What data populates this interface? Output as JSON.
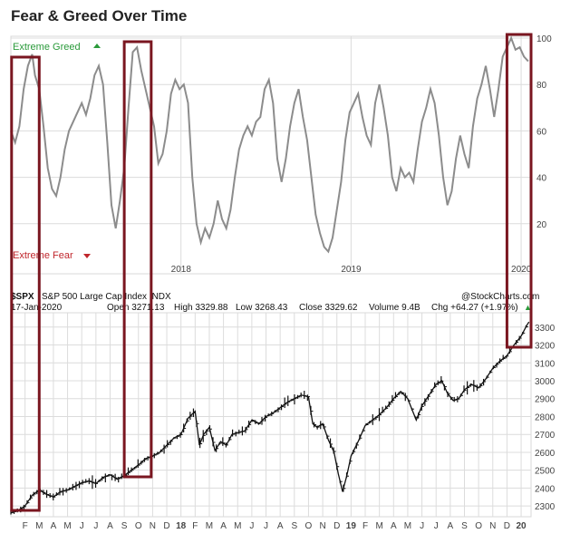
{
  "title": "Fear & Greed Over Time",
  "colors": {
    "greed": "#2a9a3a",
    "fear": "#c0262c",
    "fg_line": "#8c8c8c",
    "price": "#111111",
    "box": "#7a1620",
    "grid": "#dcdcdc"
  },
  "chart_data": [
    {
      "type": "line",
      "name": "fear-greed-index",
      "title": "Fear & Greed Over Time",
      "greed_label": "Extreme Greed",
      "fear_label": "Extreme Fear",
      "ylim": [
        0,
        100
      ],
      "y_ticks": [
        20,
        40,
        60,
        80,
        100
      ],
      "x_ticks": [
        {
          "t": 12.0,
          "label": "2018"
        },
        {
          "t": 24.0,
          "label": "2019"
        },
        {
          "t": 36.0,
          "label": "2020"
        }
      ],
      "x_unit": "months since Jan 2017",
      "xlim": [
        0.0,
        36.7
      ],
      "series": [
        {
          "name": "Fear & Greed Index",
          "points": [
            [
              0.0,
              60
            ],
            [
              0.3,
              55
            ],
            [
              0.6,
              62
            ],
            [
              0.9,
              78
            ],
            [
              1.2,
              88
            ],
            [
              1.5,
              93
            ],
            [
              1.7,
              84
            ],
            [
              2.0,
              78
            ],
            [
              2.3,
              62
            ],
            [
              2.6,
              44
            ],
            [
              2.9,
              35
            ],
            [
              3.2,
              32
            ],
            [
              3.5,
              40
            ],
            [
              3.8,
              52
            ],
            [
              4.1,
              60
            ],
            [
              4.4,
              64
            ],
            [
              4.7,
              68
            ],
            [
              5.0,
              72
            ],
            [
              5.3,
              67
            ],
            [
              5.6,
              74
            ],
            [
              5.9,
              84
            ],
            [
              6.2,
              88
            ],
            [
              6.5,
              80
            ],
            [
              6.8,
              55
            ],
            [
              7.1,
              28
            ],
            [
              7.4,
              18
            ],
            [
              7.7,
              30
            ],
            [
              8.0,
              44
            ],
            [
              8.3,
              70
            ],
            [
              8.6,
              94
            ],
            [
              8.9,
              96
            ],
            [
              9.2,
              86
            ],
            [
              9.5,
              78
            ],
            [
              9.8,
              70
            ],
            [
              10.1,
              62
            ],
            [
              10.4,
              46
            ],
            [
              10.7,
              50
            ],
            [
              11.0,
              60
            ],
            [
              11.3,
              76
            ],
            [
              11.6,
              82
            ],
            [
              11.9,
              78
            ],
            [
              12.2,
              80
            ],
            [
              12.5,
              72
            ],
            [
              12.8,
              40
            ],
            [
              13.1,
              20
            ],
            [
              13.4,
              12
            ],
            [
              13.7,
              18
            ],
            [
              14.0,
              14
            ],
            [
              14.3,
              20
            ],
            [
              14.6,
              30
            ],
            [
              14.9,
              22
            ],
            [
              15.2,
              18
            ],
            [
              15.5,
              26
            ],
            [
              15.8,
              40
            ],
            [
              16.1,
              52
            ],
            [
              16.4,
              58
            ],
            [
              16.7,
              62
            ],
            [
              17.0,
              58
            ],
            [
              17.3,
              64
            ],
            [
              17.6,
              66
            ],
            [
              17.9,
              78
            ],
            [
              18.2,
              82
            ],
            [
              18.5,
              72
            ],
            [
              18.8,
              48
            ],
            [
              19.1,
              38
            ],
            [
              19.4,
              48
            ],
            [
              19.7,
              62
            ],
            [
              20.0,
              72
            ],
            [
              20.3,
              78
            ],
            [
              20.6,
              66
            ],
            [
              20.9,
              56
            ],
            [
              21.2,
              40
            ],
            [
              21.5,
              24
            ],
            [
              21.8,
              16
            ],
            [
              22.1,
              10
            ],
            [
              22.4,
              8
            ],
            [
              22.7,
              14
            ],
            [
              23.0,
              26
            ],
            [
              23.3,
              38
            ],
            [
              23.6,
              56
            ],
            [
              23.9,
              68
            ],
            [
              24.2,
              72
            ],
            [
              24.5,
              76
            ],
            [
              24.8,
              66
            ],
            [
              25.1,
              58
            ],
            [
              25.4,
              54
            ],
            [
              25.7,
              72
            ],
            [
              26.0,
              80
            ],
            [
              26.3,
              70
            ],
            [
              26.6,
              58
            ],
            [
              26.9,
              40
            ],
            [
              27.2,
              34
            ],
            [
              27.5,
              44
            ],
            [
              27.8,
              40
            ],
            [
              28.1,
              42
            ],
            [
              28.4,
              38
            ],
            [
              28.7,
              52
            ],
            [
              29.0,
              64
            ],
            [
              29.3,
              70
            ],
            [
              29.6,
              78
            ],
            [
              29.9,
              72
            ],
            [
              30.2,
              58
            ],
            [
              30.5,
              40
            ],
            [
              30.8,
              28
            ],
            [
              31.1,
              34
            ],
            [
              31.4,
              48
            ],
            [
              31.7,
              58
            ],
            [
              32.0,
              50
            ],
            [
              32.3,
              44
            ],
            [
              32.6,
              62
            ],
            [
              32.9,
              74
            ],
            [
              33.2,
              80
            ],
            [
              33.5,
              88
            ],
            [
              33.8,
              78
            ],
            [
              34.1,
              66
            ],
            [
              34.4,
              78
            ],
            [
              34.7,
              92
            ],
            [
              35.0,
              96
            ],
            [
              35.3,
              100
            ],
            [
              35.6,
              95
            ],
            [
              35.9,
              96
            ],
            [
              36.2,
              92
            ],
            [
              36.5,
              90
            ]
          ]
        }
      ]
    },
    {
      "type": "ohlc",
      "name": "spx-price",
      "symbol": "$SPX",
      "description": "S&P 500 Large Cap Index INDX",
      "date": "17-Jan-2020",
      "source": "@StockCharts.com",
      "open": "Open 3271.13",
      "high": "High 3329.88",
      "low": "Low 3268.43",
      "close": "Close 3329.62",
      "volume": "Volume 9.4B",
      "chg": "Chg +64.27 (+1.97%)",
      "chg_arrow": "▲",
      "ylim": [
        2240,
        3380
      ],
      "y_ticks": [
        2300,
        2400,
        2500,
        2600,
        2700,
        2800,
        2900,
        3000,
        3100,
        3200,
        3300
      ],
      "x_unit": "months since Jan 2017",
      "xlim": [
        0.0,
        36.7
      ],
      "x_ticks": [
        {
          "t": 1,
          "label": "F"
        },
        {
          "t": 2,
          "label": "M"
        },
        {
          "t": 3,
          "label": "A"
        },
        {
          "t": 4,
          "label": "M"
        },
        {
          "t": 5,
          "label": "J"
        },
        {
          "t": 6,
          "label": "J"
        },
        {
          "t": 7,
          "label": "A"
        },
        {
          "t": 8,
          "label": "S"
        },
        {
          "t": 9,
          "label": "O"
        },
        {
          "t": 10,
          "label": "N"
        },
        {
          "t": 11,
          "label": "D"
        },
        {
          "t": 12,
          "label": "18",
          "bold": true
        },
        {
          "t": 13,
          "label": "F"
        },
        {
          "t": 14,
          "label": "M"
        },
        {
          "t": 15,
          "label": "A"
        },
        {
          "t": 16,
          "label": "M"
        },
        {
          "t": 17,
          "label": "J"
        },
        {
          "t": 18,
          "label": "J"
        },
        {
          "t": 19,
          "label": "A"
        },
        {
          "t": 20,
          "label": "S"
        },
        {
          "t": 21,
          "label": "O"
        },
        {
          "t": 22,
          "label": "N"
        },
        {
          "t": 23,
          "label": "D"
        },
        {
          "t": 24,
          "label": "19",
          "bold": true
        },
        {
          "t": 25,
          "label": "F"
        },
        {
          "t": 26,
          "label": "M"
        },
        {
          "t": 27,
          "label": "A"
        },
        {
          "t": 28,
          "label": "M"
        },
        {
          "t": 29,
          "label": "J"
        },
        {
          "t": 30,
          "label": "J"
        },
        {
          "t": 31,
          "label": "A"
        },
        {
          "t": 32,
          "label": "S"
        },
        {
          "t": 33,
          "label": "O"
        },
        {
          "t": 34,
          "label": "N"
        },
        {
          "t": 35,
          "label": "D"
        },
        {
          "t": 36,
          "label": "20",
          "bold": true
        }
      ],
      "series": [
        {
          "name": "S&P 500 close",
          "points": [
            [
              0.0,
              2262
            ],
            [
              0.5,
              2275
            ],
            [
              1.0,
              2300
            ],
            [
              1.5,
              2360
            ],
            [
              2.0,
              2390
            ],
            [
              2.5,
              2365
            ],
            [
              3.0,
              2350
            ],
            [
              3.5,
              2380
            ],
            [
              4.0,
              2390
            ],
            [
              4.5,
              2410
            ],
            [
              5.0,
              2430
            ],
            [
              5.5,
              2440
            ],
            [
              6.0,
              2425
            ],
            [
              6.5,
              2460
            ],
            [
              7.0,
              2475
            ],
            [
              7.5,
              2450
            ],
            [
              8.0,
              2470
            ],
            [
              8.5,
              2500
            ],
            [
              9.0,
              2530
            ],
            [
              9.5,
              2565
            ],
            [
              10.0,
              2580
            ],
            [
              10.5,
              2600
            ],
            [
              11.0,
              2640
            ],
            [
              11.5,
              2680
            ],
            [
              12.0,
              2700
            ],
            [
              12.5,
              2790
            ],
            [
              13.0,
              2830
            ],
            [
              13.3,
              2640
            ],
            [
              13.6,
              2700
            ],
            [
              14.0,
              2740
            ],
            [
              14.4,
              2610
            ],
            [
              14.8,
              2660
            ],
            [
              15.2,
              2640
            ],
            [
              15.6,
              2700
            ],
            [
              16.0,
              2710
            ],
            [
              16.5,
              2720
            ],
            [
              17.0,
              2780
            ],
            [
              17.5,
              2760
            ],
            [
              18.0,
              2800
            ],
            [
              18.5,
              2820
            ],
            [
              19.0,
              2850
            ],
            [
              19.5,
              2880
            ],
            [
              20.0,
              2900
            ],
            [
              20.5,
              2920
            ],
            [
              21.0,
              2910
            ],
            [
              21.3,
              2760
            ],
            [
              21.6,
              2740
            ],
            [
              22.0,
              2760
            ],
            [
              22.4,
              2670
            ],
            [
              22.8,
              2600
            ],
            [
              23.1,
              2480
            ],
            [
              23.4,
              2380
            ],
            [
              23.7,
              2470
            ],
            [
              24.0,
              2580
            ],
            [
              24.5,
              2660
            ],
            [
              25.0,
              2750
            ],
            [
              25.5,
              2780
            ],
            [
              26.0,
              2810
            ],
            [
              26.5,
              2850
            ],
            [
              27.0,
              2900
            ],
            [
              27.5,
              2940
            ],
            [
              28.0,
              2900
            ],
            [
              28.3,
              2840
            ],
            [
              28.6,
              2780
            ],
            [
              29.0,
              2860
            ],
            [
              29.5,
              2920
            ],
            [
              30.0,
              2980
            ],
            [
              30.4,
              3000
            ],
            [
              30.8,
              2930
            ],
            [
              31.2,
              2890
            ],
            [
              31.6,
              2900
            ],
            [
              32.0,
              2950
            ],
            [
              32.5,
              2980
            ],
            [
              33.0,
              2960
            ],
            [
              33.5,
              3010
            ],
            [
              34.0,
              3070
            ],
            [
              34.5,
              3110
            ],
            [
              35.0,
              3140
            ],
            [
              35.5,
              3200
            ],
            [
              36.0,
              3250
            ],
            [
              36.4,
              3310
            ],
            [
              36.55,
              3329
            ]
          ]
        }
      ]
    }
  ]
}
